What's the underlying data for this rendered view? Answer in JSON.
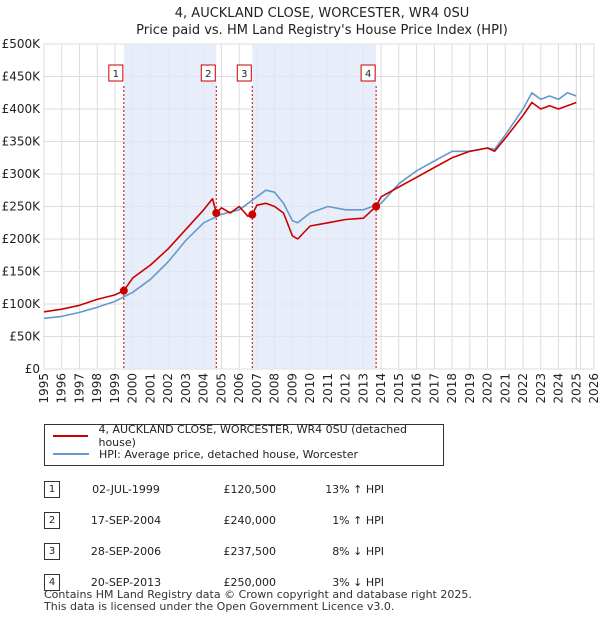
{
  "chart_data": {
    "type": "line",
    "title": "4, AUCKLAND CLOSE, WORCESTER, WR4 0SU",
    "subtitle": "Price paid vs. HM Land Registry's House Price Index (HPI)",
    "y_ticks": [
      "£0",
      "£50K",
      "£100K",
      "£150K",
      "£200K",
      "£250K",
      "£300K",
      "£350K",
      "£400K",
      "£450K",
      "£500K"
    ],
    "x_ticks": [
      "1995",
      "1996",
      "1997",
      "1998",
      "1999",
      "2000",
      "2001",
      "2002",
      "2003",
      "2004",
      "2005",
      "2006",
      "2007",
      "2008",
      "2009",
      "2010",
      "2011",
      "2012",
      "2013",
      "2014",
      "2015",
      "2016",
      "2017",
      "2018",
      "2019",
      "2020",
      "2021",
      "2022",
      "2023",
      "2024",
      "2025",
      "2026"
    ],
    "ylim": [
      0,
      500000
    ],
    "xlim": [
      1995,
      2026
    ],
    "grid": true,
    "shaded_ranges": [
      [
        1999.5,
        2004.71
      ],
      [
        2006.74,
        2013.72
      ]
    ],
    "forecast_from": 2025.0,
    "series": [
      {
        "name": "4, AUCKLAND CLOSE, WORCESTER, WR4 0SU (detached house)",
        "color": "#cc0000",
        "x": [
          1995.0,
          1996.0,
          1997.0,
          1998.0,
          1999.0,
          1999.5,
          2000.0,
          2001.0,
          2002.0,
          2003.0,
          2004.0,
          2004.5,
          2004.71,
          2005.0,
          2005.5,
          2006.0,
          2006.5,
          2006.74,
          2007.0,
          2007.5,
          2008.0,
          2008.5,
          2009.0,
          2009.3,
          2010.0,
          2011.0,
          2012.0,
          2013.0,
          2013.72,
          2014.0,
          2015.0,
          2016.0,
          2017.0,
          2018.0,
          2019.0,
          2020.0,
          2020.4,
          2021.0,
          2022.0,
          2022.5,
          2023.0,
          2023.5,
          2024.0,
          2024.5,
          2025.0
        ],
        "y": [
          88000,
          92000,
          98000,
          107000,
          114000,
          120500,
          140000,
          160000,
          185000,
          215000,
          245000,
          262000,
          240000,
          248000,
          240000,
          250000,
          235000,
          237500,
          252000,
          255000,
          250000,
          240000,
          205000,
          200000,
          220000,
          225000,
          230000,
          232000,
          250000,
          265000,
          280000,
          295000,
          310000,
          325000,
          335000,
          340000,
          335000,
          355000,
          390000,
          410000,
          400000,
          405000,
          400000,
          405000,
          410000
        ]
      },
      {
        "name": "HPI: Average price, detached house, Worcester",
        "color": "#6699cc",
        "x": [
          1995.0,
          1996.0,
          1997.0,
          1998.0,
          1999.0,
          2000.0,
          2001.0,
          2002.0,
          2003.0,
          2004.0,
          2005.0,
          2006.0,
          2007.0,
          2007.5,
          2008.0,
          2008.5,
          2009.0,
          2009.3,
          2010.0,
          2011.0,
          2012.0,
          2013.0,
          2014.0,
          2015.0,
          2016.0,
          2017.0,
          2018.0,
          2019.0,
          2020.0,
          2020.4,
          2021.0,
          2022.0,
          2022.5,
          2023.0,
          2023.5,
          2024.0,
          2024.5,
          2025.0
        ],
        "y": [
          78000,
          81000,
          87000,
          95000,
          104000,
          118000,
          138000,
          165000,
          198000,
          225000,
          238000,
          245000,
          265000,
          275000,
          272000,
          255000,
          228000,
          225000,
          240000,
          250000,
          245000,
          245000,
          255000,
          285000,
          305000,
          320000,
          335000,
          335000,
          340000,
          338000,
          360000,
          400000,
          425000,
          415000,
          420000,
          415000,
          425000,
          420000
        ]
      }
    ],
    "sales": [
      {
        "marker": "1",
        "date": "02-JUL-1999",
        "x": 1999.5,
        "price_value": 120500,
        "price": "£120,500",
        "hpi": "13% ↑ HPI"
      },
      {
        "marker": "2",
        "date": "17-SEP-2004",
        "x": 2004.71,
        "price_value": 240000,
        "price": "£240,000",
        "hpi": "1% ↑ HPI"
      },
      {
        "marker": "3",
        "date": "28-SEP-2006",
        "x": 2006.74,
        "price_value": 237500,
        "price": "£237,500",
        "hpi": "8% ↓ HPI"
      },
      {
        "marker": "4",
        "date": "20-SEP-2013",
        "x": 2013.72,
        "price_value": 250000,
        "price": "£250,000",
        "hpi": "3% ↓ HPI"
      }
    ]
  },
  "legend": {
    "property_label": "4, AUCKLAND CLOSE, WORCESTER, WR4 0SU (detached house)",
    "hpi_label": "HPI: Average price, detached house, Worcester"
  },
  "footer": {
    "line1": "Contains HM Land Registry data © Crown copyright and database right 2025.",
    "line2": "This data is licensed under the Open Government Licence v3.0."
  }
}
